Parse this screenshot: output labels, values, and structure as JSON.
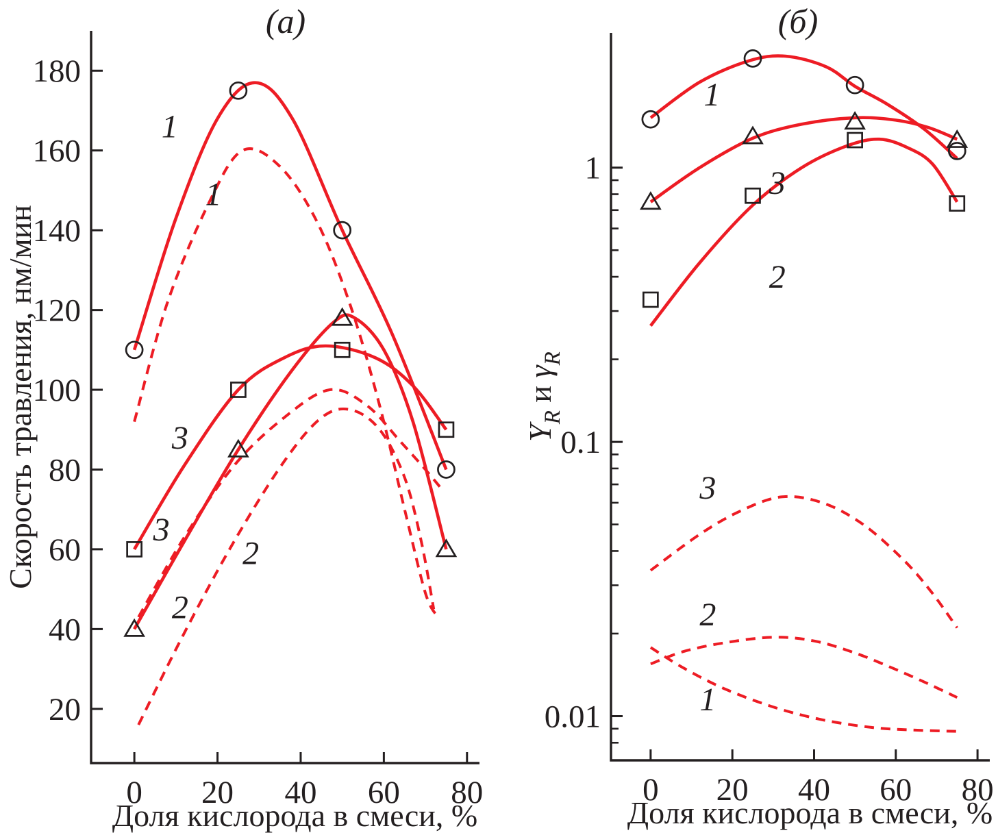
{
  "figure": {
    "background": "#ffffff",
    "ink": "#231f20",
    "red": "#ed1c24"
  },
  "chart_data": [
    {
      "panel": "a",
      "type": "line",
      "title": "(а)",
      "xlabel": "Доля кислорода в смеси, %",
      "ylabel": "Скорость травления, нм/мин",
      "x_scale": "linear",
      "y_scale": "linear",
      "xlim": [
        -10.4,
        83
      ],
      "ylim": [
        6.4,
        190
      ],
      "x_ticks": [
        0,
        20,
        40,
        60,
        80
      ],
      "y_ticks": [
        20,
        40,
        60,
        80,
        100,
        120,
        140,
        160,
        180
      ],
      "grid": false,
      "legend_position": "none",
      "series": [
        {
          "name": "curve-1-solid",
          "legend": "1",
          "line": "solid",
          "marker": "circle",
          "points": [
            [
              0,
              110
            ],
            [
              25,
              175
            ],
            [
              50,
              140
            ],
            [
              75,
              80
            ]
          ],
          "curve": [
            [
              0,
              110
            ],
            [
              10,
              143
            ],
            [
              20,
              168
            ],
            [
              29,
              177
            ],
            [
              38,
              168
            ],
            [
              50,
              140
            ],
            [
              62,
              114
            ],
            [
              75,
              80
            ]
          ],
          "label": {
            "text": "1",
            "x": 8.5,
            "y": 166
          }
        },
        {
          "name": "curve-1-dashed",
          "legend": "1",
          "line": "dashed",
          "marker": null,
          "curve": [
            [
              0,
              92
            ],
            [
              8,
              122
            ],
            [
              18,
              147
            ],
            [
              26,
              160
            ],
            [
              35,
              156
            ],
            [
              44,
              142
            ],
            [
              52,
              121
            ],
            [
              59,
              96
            ],
            [
              65,
              70
            ],
            [
              70,
              49
            ],
            [
              73,
              43
            ]
          ],
          "label": {
            "text": "1",
            "x": 19,
            "y": 149
          }
        },
        {
          "name": "curve-3-solid",
          "legend": "3",
          "line": "solid",
          "marker": "square",
          "points": [
            [
              0,
              60
            ],
            [
              25,
              100
            ],
            [
              50,
              110
            ],
            [
              75,
              90
            ]
          ],
          "curve": [
            [
              0,
              60
            ],
            [
              12,
              81
            ],
            [
              25,
              100
            ],
            [
              36,
              108
            ],
            [
              46,
              111
            ],
            [
              58,
              108
            ],
            [
              67,
              101
            ],
            [
              75,
              90
            ]
          ],
          "label": {
            "text": "3",
            "x": 11,
            "y": 88
          }
        },
        {
          "name": "curve-3-dashed",
          "legend": "3",
          "line": "dashed",
          "marker": null,
          "curve": [
            [
              1,
              43
            ],
            [
              12,
              63
            ],
            [
              24,
              81
            ],
            [
              36,
              93
            ],
            [
              47,
              100
            ],
            [
              56,
              96
            ],
            [
              64,
              87
            ],
            [
              70,
              80
            ],
            [
              74,
              75
            ]
          ],
          "label": {
            "text": "3",
            "x": 6.5,
            "y": 65
          }
        },
        {
          "name": "curve-2-solid",
          "legend": "2",
          "line": "solid",
          "marker": "triangle",
          "points": [
            [
              0,
              40
            ],
            [
              25,
              85
            ],
            [
              50,
              118
            ],
            [
              75,
              60
            ]
          ],
          "curve": [
            [
              0,
              40
            ],
            [
              12,
              62
            ],
            [
              25,
              85
            ],
            [
              38,
              105
            ],
            [
              48,
              117
            ],
            [
              53,
              118
            ],
            [
              60,
              110
            ],
            [
              67,
              92
            ],
            [
              75,
              60
            ]
          ],
          "label": {
            "text": "2",
            "x": 11,
            "y": 45.5
          }
        },
        {
          "name": "curve-2-dashed",
          "legend": "2",
          "line": "dashed",
          "marker": null,
          "curve": [
            [
              1,
              16
            ],
            [
              12,
              39
            ],
            [
              24,
              62
            ],
            [
              36,
              82
            ],
            [
              45,
              93
            ],
            [
              52,
              95
            ],
            [
              59,
              90
            ],
            [
              65,
              78
            ],
            [
              69,
              62
            ],
            [
              72,
              45
            ]
          ],
          "label": {
            "text": "2",
            "x": 28,
            "y": 59
          }
        }
      ]
    },
    {
      "panel": "b",
      "type": "line",
      "title": "(б)",
      "xlabel": "Доля кислорода в смеси, %",
      "ylabel": "YR и γR",
      "ylabel_rich": [
        {
          "t": "Y",
          "it": true
        },
        {
          "t": "R",
          "it": true,
          "sub": true
        },
        {
          "t": " и ",
          "it": false
        },
        {
          "t": "γ",
          "it": true
        },
        {
          "t": "R",
          "it": true,
          "sub": true
        }
      ],
      "x_scale": "linear",
      "y_scale": "log",
      "xlim": [
        -9.7,
        83
      ],
      "ylim": [
        0.0069,
        3.1
      ],
      "x_ticks": [
        0,
        20,
        40,
        60,
        80
      ],
      "y_ticks": [
        {
          "v": 1,
          "label": "1"
        },
        {
          "v": 0.1,
          "label": "0.1"
        },
        {
          "v": 0.01,
          "label": "0.01"
        }
      ],
      "y_minor_ticks": "log-auto",
      "grid": false,
      "legend_position": "none",
      "series": [
        {
          "name": "curve-1-solid",
          "legend": "1",
          "line": "solid",
          "marker": "circle",
          "points": [
            [
              0,
              1.5
            ],
            [
              25,
              2.5
            ],
            [
              50,
              2.0
            ],
            [
              75,
              1.15
            ]
          ],
          "curve": [
            [
              0,
              1.52
            ],
            [
              12,
              2.05
            ],
            [
              24,
              2.45
            ],
            [
              33,
              2.55
            ],
            [
              43,
              2.33
            ],
            [
              50,
              1.98
            ],
            [
              58,
              1.7
            ],
            [
              67,
              1.38
            ],
            [
              75,
              1.08
            ]
          ],
          "label": {
            "text": "1",
            "x": 15,
            "y": 1.85
          }
        },
        {
          "name": "curve-3-solid",
          "legend": "3",
          "line": "solid",
          "marker": "triangle",
          "points": [
            [
              0,
              0.75
            ],
            [
              25,
              1.3
            ],
            [
              50,
              1.47
            ],
            [
              75,
              1.26
            ]
          ],
          "curve": [
            [
              0,
              0.75
            ],
            [
              12,
              1.0
            ],
            [
              25,
              1.28
            ],
            [
              37,
              1.44
            ],
            [
              50,
              1.52
            ],
            [
              60,
              1.49
            ],
            [
              68,
              1.4
            ],
            [
              75,
              1.27
            ]
          ],
          "label": {
            "text": "3",
            "x": 31,
            "y": 0.88
          }
        },
        {
          "name": "curve-2-solid",
          "legend": "2",
          "line": "solid",
          "marker": "square",
          "points": [
            [
              0,
              0.33
            ],
            [
              25,
              0.79
            ],
            [
              50,
              1.26
            ],
            [
              75,
              0.74
            ]
          ],
          "curve": [
            [
              0,
              0.265
            ],
            [
              12,
              0.45
            ],
            [
              25,
              0.73
            ],
            [
              37,
              1.0
            ],
            [
              48,
              1.2
            ],
            [
              56,
              1.27
            ],
            [
              63,
              1.18
            ],
            [
              69,
              1.03
            ],
            [
              75,
              0.75
            ]
          ],
          "label": {
            "text": "2",
            "x": 31,
            "y": 0.4
          }
        },
        {
          "name": "curve-3-dashed",
          "legend": "3",
          "line": "dashed",
          "marker": null,
          "curve": [
            [
              0,
              0.034
            ],
            [
              12,
              0.046
            ],
            [
              22,
              0.056
            ],
            [
              32,
              0.063
            ],
            [
              42,
              0.06
            ],
            [
              52,
              0.05
            ],
            [
              62,
              0.037
            ],
            [
              69,
              0.028
            ],
            [
              75,
              0.021
            ]
          ],
          "label": {
            "text": "3",
            "x": 14,
            "y": 0.068
          }
        },
        {
          "name": "curve-2-dashed",
          "legend": "2",
          "line": "dashed",
          "marker": null,
          "curve": [
            [
              0,
              0.0155
            ],
            [
              8,
              0.0172
            ],
            [
              18,
              0.0185
            ],
            [
              30,
              0.0194
            ],
            [
              40,
              0.0188
            ],
            [
              50,
              0.017
            ],
            [
              60,
              0.0148
            ],
            [
              68,
              0.0131
            ],
            [
              75,
              0.0117
            ]
          ],
          "label": {
            "text": "2",
            "x": 14,
            "y": 0.0235
          }
        },
        {
          "name": "curve-1-dashed",
          "legend": "1",
          "line": "dashed",
          "marker": null,
          "curve": [
            [
              0,
              0.0178
            ],
            [
              8,
              0.015
            ],
            [
              18,
              0.0126
            ],
            [
              30,
              0.0108
            ],
            [
              42,
              0.0097
            ],
            [
              54,
              0.0091
            ],
            [
              64,
              0.0089
            ],
            [
              75,
              0.0088
            ]
          ],
          "label": {
            "text": "1",
            "x": 14,
            "y": 0.0115
          }
        }
      ]
    }
  ]
}
